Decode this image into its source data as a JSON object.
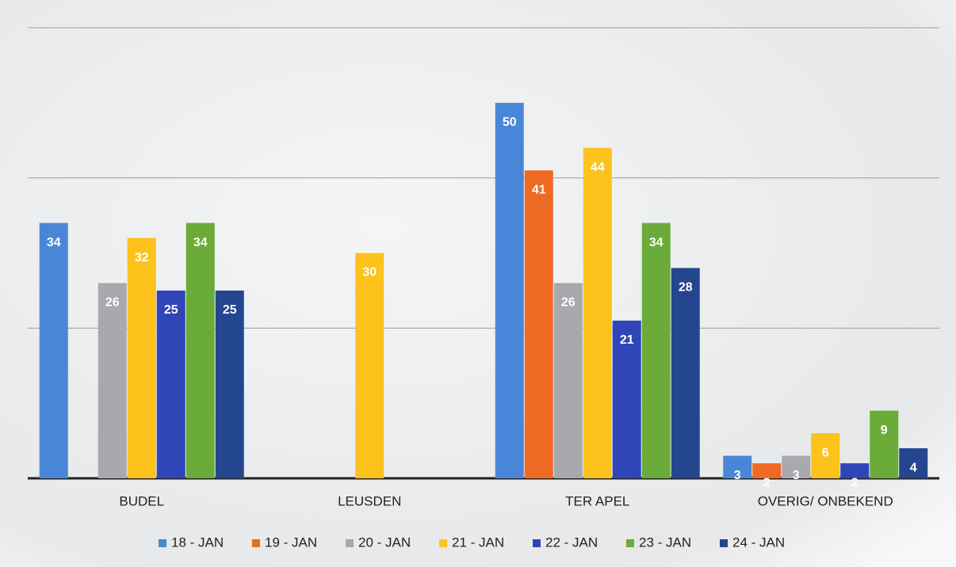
{
  "chart_data": {
    "type": "bar",
    "categories": [
      "BUDEL",
      "LEUSDEN",
      "TER APEL",
      "OVERIG/ ONBEKEND"
    ],
    "series": [
      {
        "name": "18 - JAN",
        "color": "#4a86d8",
        "values": [
          34,
          null,
          50,
          3
        ]
      },
      {
        "name": "19 - JAN",
        "color": "#ef6a22",
        "values": [
          null,
          null,
          41,
          2
        ]
      },
      {
        "name": "20 - JAN",
        "color": "#a8a9ad",
        "values": [
          26,
          null,
          26,
          3
        ]
      },
      {
        "name": "21 - JAN",
        "color": "#fdc21c",
        "values": [
          32,
          30,
          44,
          6
        ]
      },
      {
        "name": "22 - JAN",
        "color": "#2f45b8",
        "values": [
          25,
          null,
          21,
          2
        ]
      },
      {
        "name": "23 - JAN",
        "color": "#6aab3a",
        "values": [
          34,
          null,
          34,
          9
        ]
      },
      {
        "name": "24 - JAN",
        "color": "#24468f",
        "values": [
          25,
          null,
          28,
          4
        ]
      }
    ],
    "ylim": [
      0,
      60
    ],
    "yticks": [
      0,
      20,
      40,
      60
    ],
    "grid": true,
    "legend": "bottom"
  }
}
